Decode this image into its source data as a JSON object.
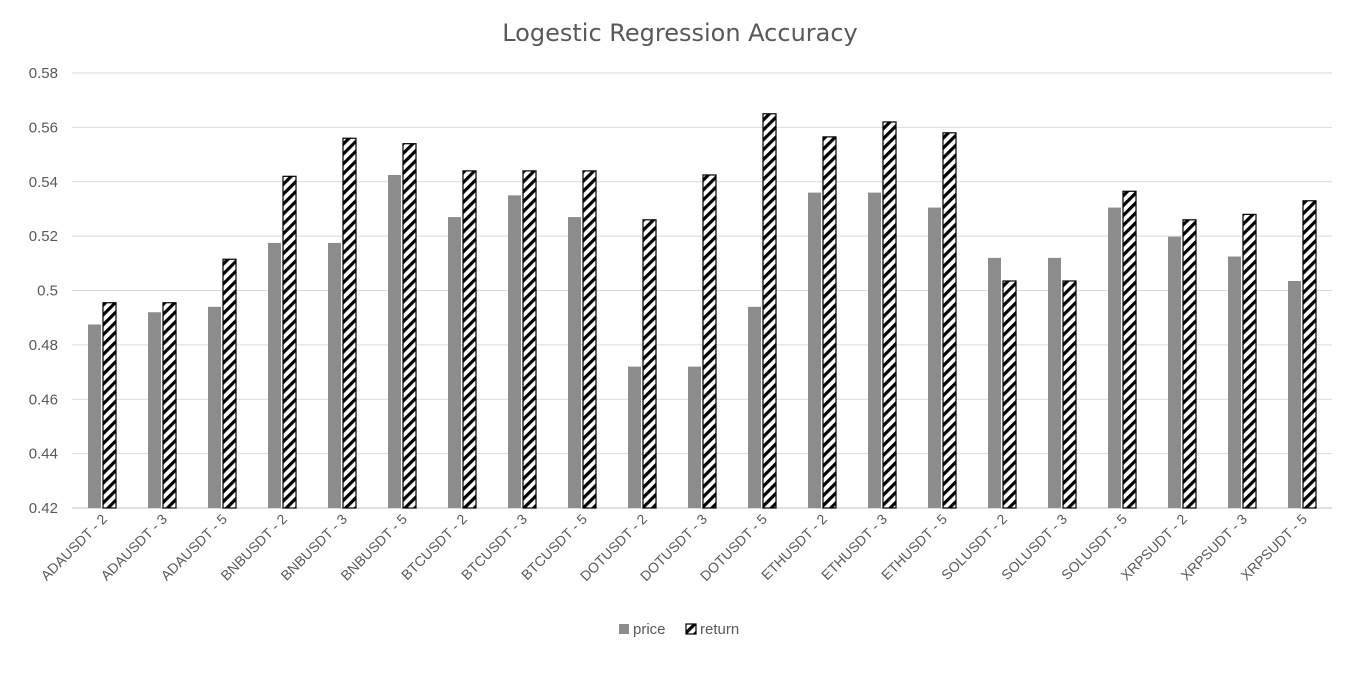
{
  "chart_data": {
    "type": "bar",
    "title": "Logestic Regression Accuracy",
    "xlabel": "",
    "ylabel": "",
    "ylim": [
      0.42,
      0.58
    ],
    "yticks": [
      "0.42",
      "0.44",
      "0.46",
      "0.48",
      "0.5",
      "0.52",
      "0.54",
      "0.56",
      "0.58"
    ],
    "ytick_values": [
      0.42,
      0.44,
      0.46,
      0.48,
      0.5,
      0.52,
      0.54,
      0.56,
      0.58
    ],
    "grid": true,
    "legend_position": "bottom",
    "categories": [
      "ADAUSDT - 2",
      "ADAUSDT - 3",
      "ADAUSDT - 5",
      "BNBUSDT - 2",
      "BNBUSDT - 3",
      "BNBUSDT - 5",
      "BTCUSDT - 2",
      "BTCUSDT - 3",
      "BTCUSDT - 5",
      "DOTUSDT - 2",
      "DOTUSDT - 3",
      "DOTUSDT - 5",
      "ETHUSDT - 2",
      "ETHUSDT - 3",
      "ETHUSDT - 5",
      "SOLUSDT - 2",
      "SOLUSDT - 3",
      "SOLUSDT - 5",
      "XRPSUDT - 2",
      "XRPSUDT - 3",
      "XRPSUDT - 5"
    ],
    "series": [
      {
        "name": "price",
        "color": "#8c8c8c",
        "values": [
          0.4875,
          0.492,
          0.494,
          0.5175,
          0.5175,
          0.5425,
          0.527,
          0.535,
          0.527,
          0.472,
          0.472,
          0.494,
          0.536,
          0.536,
          0.5305,
          0.512,
          0.512,
          0.5305,
          0.5198,
          0.5125,
          0.5035
        ]
      },
      {
        "name": "return",
        "color": "#000000",
        "pattern": "diagonal-hatch",
        "values": [
          0.4955,
          0.4955,
          0.5115,
          0.542,
          0.556,
          0.554,
          0.544,
          0.544,
          0.544,
          0.526,
          0.5425,
          0.565,
          0.5565,
          0.562,
          0.558,
          0.5035,
          0.5035,
          0.5365,
          0.526,
          0.528,
          0.533
        ]
      }
    ]
  }
}
